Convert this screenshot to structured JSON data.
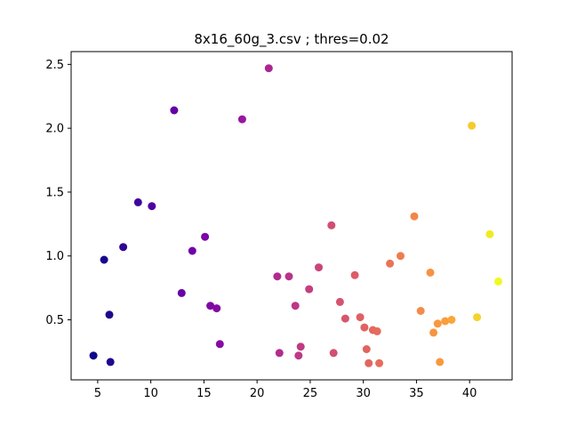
{
  "chart_data": {
    "type": "scatter",
    "title": "8x16_60g_3.csv ; thres=0.02",
    "xlabel": "",
    "ylabel": "",
    "xlim": [
      2.5,
      44.0
    ],
    "ylim": [
      0.03,
      2.6
    ],
    "xticks": [
      5,
      10,
      15,
      20,
      25,
      30,
      35,
      40
    ],
    "xtick_labels": [
      "5",
      "10",
      "15",
      "20",
      "25",
      "30",
      "35",
      "40"
    ],
    "yticks": [
      0.5,
      1.0,
      1.5,
      2.0,
      2.5
    ],
    "ytick_labels": [
      "0.5",
      "1.0",
      "1.5",
      "2.0",
      "2.5"
    ],
    "grid": false,
    "legend": "none",
    "colormap": "plasma",
    "color_by": "x",
    "marker_color_range": [
      "#0d0887",
      "#f0f921"
    ],
    "points": [
      {
        "x": 4.6,
        "y": 0.22
      },
      {
        "x": 5.6,
        "y": 0.97
      },
      {
        "x": 6.1,
        "y": 0.54
      },
      {
        "x": 6.2,
        "y": 0.17
      },
      {
        "x": 7.4,
        "y": 1.07
      },
      {
        "x": 8.8,
        "y": 1.42
      },
      {
        "x": 10.1,
        "y": 1.39
      },
      {
        "x": 12.2,
        "y": 2.14
      },
      {
        "x": 12.9,
        "y": 0.71
      },
      {
        "x": 13.9,
        "y": 1.04
      },
      {
        "x": 15.1,
        "y": 1.15
      },
      {
        "x": 15.6,
        "y": 0.61
      },
      {
        "x": 16.2,
        "y": 0.59
      },
      {
        "x": 16.5,
        "y": 0.31
      },
      {
        "x": 18.6,
        "y": 2.07
      },
      {
        "x": 21.1,
        "y": 2.47
      },
      {
        "x": 21.9,
        "y": 0.84
      },
      {
        "x": 22.1,
        "y": 0.24
      },
      {
        "x": 23.0,
        "y": 0.84
      },
      {
        "x": 23.6,
        "y": 0.61
      },
      {
        "x": 23.9,
        "y": 0.22
      },
      {
        "x": 24.1,
        "y": 0.29
      },
      {
        "x": 24.9,
        "y": 0.74
      },
      {
        "x": 25.8,
        "y": 0.91
      },
      {
        "x": 27.0,
        "y": 1.24
      },
      {
        "x": 27.2,
        "y": 0.24
      },
      {
        "x": 27.8,
        "y": 0.64
      },
      {
        "x": 28.3,
        "y": 0.51
      },
      {
        "x": 29.2,
        "y": 0.85
      },
      {
        "x": 29.7,
        "y": 0.52
      },
      {
        "x": 30.1,
        "y": 0.44
      },
      {
        "x": 30.3,
        "y": 0.27
      },
      {
        "x": 30.5,
        "y": 0.16
      },
      {
        "x": 30.9,
        "y": 0.42
      },
      {
        "x": 31.3,
        "y": 0.41
      },
      {
        "x": 31.5,
        "y": 0.16
      },
      {
        "x": 32.5,
        "y": 0.94
      },
      {
        "x": 33.5,
        "y": 1.0
      },
      {
        "x": 34.8,
        "y": 1.31
      },
      {
        "x": 35.4,
        "y": 0.57
      },
      {
        "x": 36.3,
        "y": 0.87
      },
      {
        "x": 36.6,
        "y": 0.4
      },
      {
        "x": 37.0,
        "y": 0.47
      },
      {
        "x": 37.2,
        "y": 0.17
      },
      {
        "x": 37.7,
        "y": 0.49
      },
      {
        "x": 38.3,
        "y": 0.5
      },
      {
        "x": 40.2,
        "y": 2.02
      },
      {
        "x": 40.7,
        "y": 0.52
      },
      {
        "x": 41.9,
        "y": 1.17
      },
      {
        "x": 42.7,
        "y": 0.8
      }
    ]
  }
}
